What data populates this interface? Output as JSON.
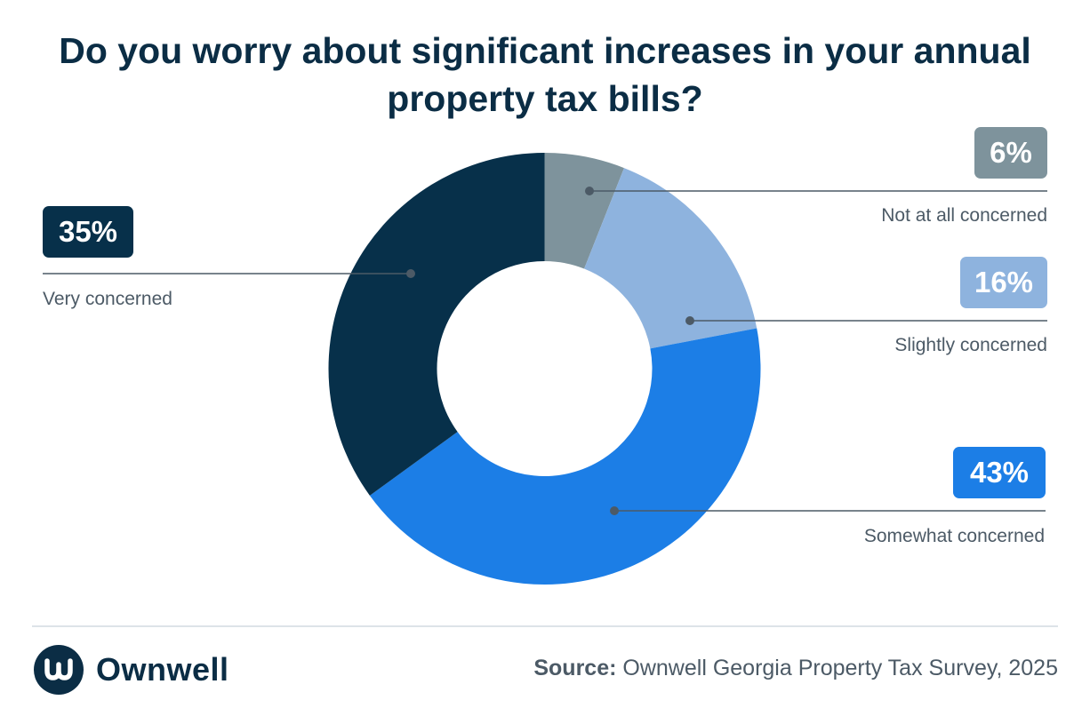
{
  "title": "Do you worry about significant increases in your annual property tax bills?",
  "chart_data": {
    "type": "pie",
    "donut": true,
    "title": "Do you worry about significant increases in your annual property tax bills?",
    "categories": [
      "Not at all concerned",
      "Slightly concerned",
      "Somewhat concerned",
      "Very concerned"
    ],
    "values": [
      6,
      16,
      43,
      35
    ],
    "labels": [
      "6%",
      "16%",
      "43%",
      "35%"
    ],
    "colors": [
      "#7e939c",
      "#8eb3de",
      "#1c7ee6",
      "#07304a"
    ],
    "start": "12 o'clock",
    "direction": "clockwise"
  },
  "source": {
    "prefix": "Source:",
    "text": "Ownwell Georgia Property Tax Survey, 2025"
  },
  "brand": {
    "name": "Ownwell",
    "logo_icon": "ownwell-w-icon",
    "color": "#0b2d45"
  }
}
